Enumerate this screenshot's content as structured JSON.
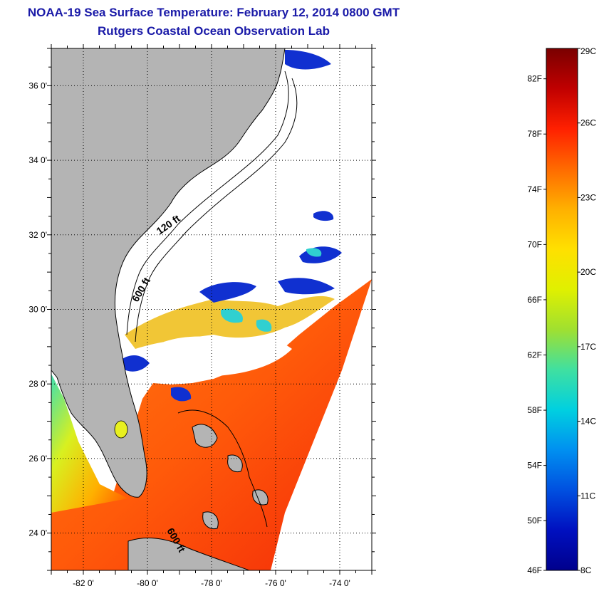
{
  "title": {
    "line1": "NOAA-19 Sea Surface Temperature:  February 12, 2014 0800 GMT",
    "line2": "Rutgers Coastal Ocean Observation Lab"
  },
  "map": {
    "lon_range": [
      -83,
      -73
    ],
    "lat_range": [
      23,
      37
    ],
    "lon_ticks": [
      {
        "value": -82,
        "label": "-82 0'"
      },
      {
        "value": -80,
        "label": "-80 0'"
      },
      {
        "value": -78,
        "label": "-78 0'"
      },
      {
        "value": -76,
        "label": "-76 0'"
      },
      {
        "value": -74,
        "label": "-74 0'"
      }
    ],
    "lat_ticks": [
      {
        "value": 36,
        "label": "36 0'"
      },
      {
        "value": 34,
        "label": "34 0'"
      },
      {
        "value": 32,
        "label": "32 0'"
      },
      {
        "value": 30,
        "label": "30 0'"
      },
      {
        "value": 28,
        "label": "28 0'"
      },
      {
        "value": 26,
        "label": "26 0'"
      },
      {
        "value": 24,
        "label": "24 0'"
      }
    ],
    "contour_labels": [
      "120 ft",
      "600 ft",
      "600 ft"
    ],
    "land_color": "#b4b4b4",
    "cloud_color": "#ffffff"
  },
  "colorbar": {
    "celsius_labels": [
      "29C",
      "26C",
      "23C",
      "20C",
      "17C",
      "14C",
      "11C",
      "8C"
    ],
    "fahrenheit_labels": [
      "82F",
      "78F",
      "74F",
      "70F",
      "66F",
      "62F",
      "58F",
      "54F",
      "50F",
      "46F"
    ],
    "colors_top_to_bottom": [
      "#7a0000",
      "#c00000",
      "#ff2000",
      "#ff6a00",
      "#ffb000",
      "#ffe000",
      "#e0f000",
      "#a0e030",
      "#40e0a0",
      "#00d0e0",
      "#0090f0",
      "#0050e0",
      "#0010c0",
      "#00008c"
    ]
  }
}
